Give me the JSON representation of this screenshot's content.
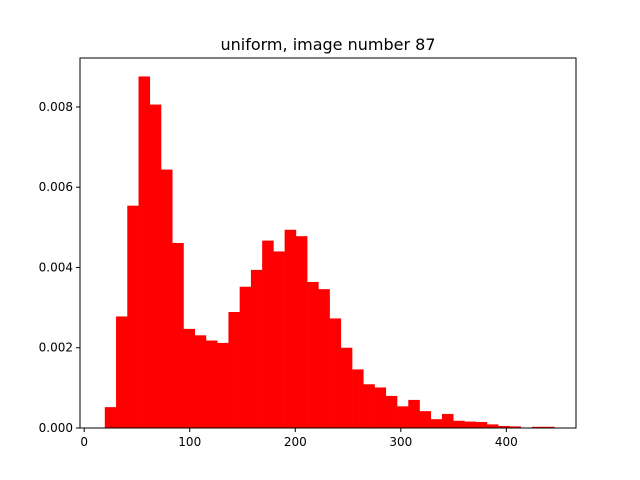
{
  "chart_data": {
    "type": "bar",
    "title": "uniform, image number 87",
    "xlabel": "",
    "ylabel": "",
    "xlim": [
      -4,
      466
    ],
    "ylim": [
      0,
      0.00922
    ],
    "x_ticks": [
      0,
      100,
      200,
      300,
      400
    ],
    "y_ticks": [
      0.0,
      0.002,
      0.004,
      0.006,
      0.008
    ],
    "y_tick_labels": [
      "0.000",
      "0.002",
      "0.004",
      "0.006",
      "0.008"
    ],
    "grid": false,
    "bar_color": "#ff0000",
    "bin_edges": [
      19.5,
      30.15,
      40.8,
      51.45,
      62.1,
      72.75,
      83.4,
      94.05,
      104.7,
      115.35,
      126.0,
      136.65,
      147.3,
      157.95,
      168.6,
      179.25,
      189.9,
      200.55,
      211.2,
      221.85,
      232.5,
      243.15,
      253.8,
      264.45,
      275.1,
      285.75,
      296.4,
      307.05,
      317.7,
      328.35,
      339.0,
      349.65,
      360.3,
      370.95,
      381.6,
      392.25,
      402.9,
      413.55,
      424.2,
      434.85,
      445.5
    ],
    "values": [
      0.00052,
      0.00278,
      0.00554,
      0.00876,
      0.00806,
      0.00644,
      0.00461,
      0.00247,
      0.00231,
      0.00218,
      0.00212,
      0.00289,
      0.00352,
      0.00394,
      0.00467,
      0.0044,
      0.00494,
      0.00478,
      0.00364,
      0.00346,
      0.00273,
      0.002,
      0.00146,
      0.00109,
      0.00101,
      0.0008,
      0.00054,
      0.0007,
      0.00042,
      0.00022,
      0.00035,
      0.00018,
      0.00016,
      0.00015,
      9e-05,
      5e-05,
      4e-05,
      0.0,
      3e-05,
      3e-05
    ]
  }
}
